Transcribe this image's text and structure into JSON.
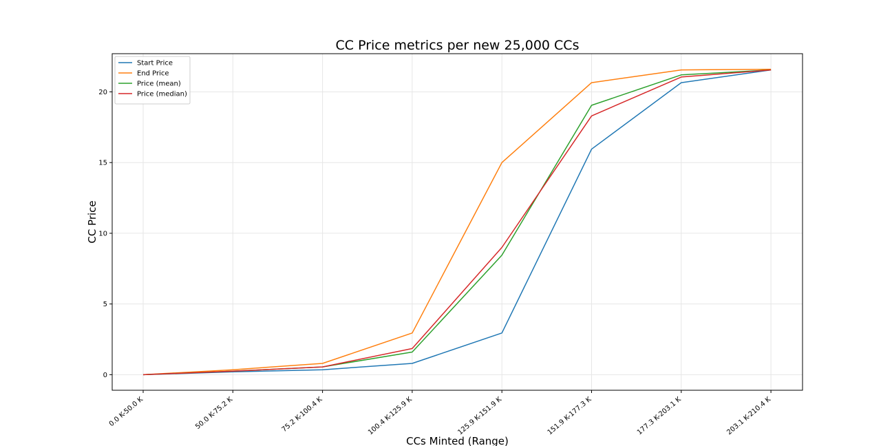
{
  "chart_data": {
    "type": "line",
    "title": "CC Price metrics per new 25,000 CCs",
    "xlabel": "CCs Minted (Range)",
    "ylabel": "CC Price",
    "categories": [
      "0.0 K-50.0 K",
      "50.0 K-75.2 K",
      "75.2 K-100.4 K",
      "100.4 K-125.9 K",
      "125.9 K-151.9 K",
      "151.9 K-177.3 K",
      "177.3 K-203.1 K",
      "203.1 K-210.4 K"
    ],
    "ylim": [
      -1.1,
      22.7
    ],
    "yticks": [
      0,
      5,
      10,
      15,
      20
    ],
    "grid": true,
    "legend_position": "upper-left",
    "series": [
      {
        "name": "Start Price",
        "color": "#1f77b4",
        "values": [
          0.0,
          0.2,
          0.35,
          0.8,
          2.95,
          15.95,
          20.65,
          21.55
        ]
      },
      {
        "name": "End Price",
        "color": "#ff7f0e",
        "values": [
          0.0,
          0.35,
          0.8,
          2.95,
          15.0,
          20.65,
          21.55,
          21.6
        ]
      },
      {
        "name": "Price (mean)",
        "color": "#2ca02c",
        "values": [
          0.0,
          0.25,
          0.55,
          1.6,
          8.45,
          19.05,
          21.2,
          21.55
        ]
      },
      {
        "name": "Price (median)",
        "color": "#d62728",
        "values": [
          0.0,
          0.25,
          0.55,
          1.85,
          9.0,
          18.3,
          21.05,
          21.55
        ]
      }
    ]
  }
}
